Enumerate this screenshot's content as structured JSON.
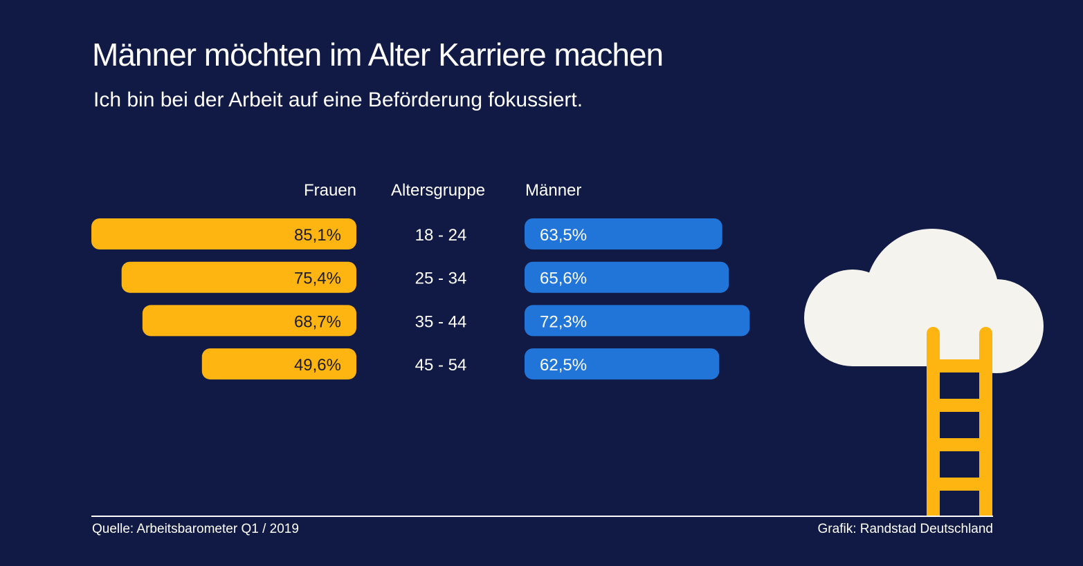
{
  "title": "Männer möchten im Alter Karriere machen",
  "subtitle": "Ich bin bei der Arbeit auf eine Beförderung fokussiert.",
  "footer": {
    "source": "Quelle: Arbeitsbarometer Q1 / 2019",
    "credit": "Grafik: Randstad Deutschland"
  },
  "colors": {
    "background": "#111a44",
    "frauen": "#ffb511",
    "maenner": "#2175d9",
    "cloud": "#f5f3ee"
  },
  "illustration": [
    "cloud-icon",
    "ladder-icon"
  ],
  "chart_data": {
    "type": "bar",
    "orientation": "horizontal-butterfly",
    "category_header": "Altersgruppe",
    "categories": [
      "18 - 24",
      "25 - 34",
      "35 - 44",
      "45 - 54"
    ],
    "series": [
      {
        "name": "Frauen",
        "values": [
          85.1,
          75.4,
          68.7,
          49.6
        ],
        "labels": [
          "85,1%",
          "75,4%",
          "68,7%",
          "49,6%"
        ]
      },
      {
        "name": "Männer",
        "values": [
          63.5,
          65.6,
          72.3,
          62.5
        ],
        "labels": [
          "63,5%",
          "65,6%",
          "72,3%",
          "62,5%"
        ]
      }
    ],
    "unit": "%"
  }
}
